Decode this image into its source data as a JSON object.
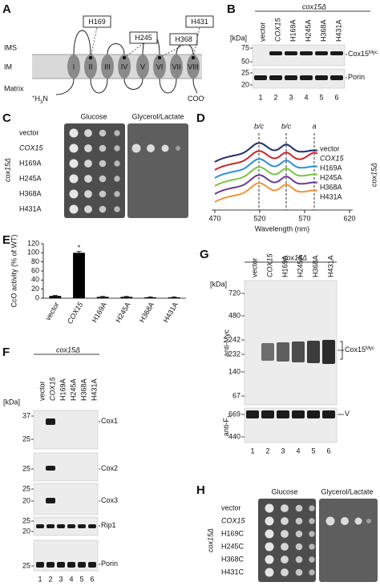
{
  "panel_A": {
    "letter": "A",
    "compartments": [
      "IMS",
      "IM",
      "Matrix"
    ],
    "helices": [
      "I",
      "II",
      "III",
      "IV",
      "V",
      "VI",
      "VII",
      "VIII"
    ],
    "residues": [
      "H169",
      "H245",
      "H368",
      "H431"
    ],
    "n_terminus": [
      "+",
      "H",
      "3",
      "N"
    ],
    "c_terminus": [
      "COO",
      "-"
    ]
  },
  "panel_B": {
    "letter": "B",
    "strain": "cox15Δ",
    "lanes": [
      "vector",
      "COX15",
      "H169A",
      "H245A",
      "H368A",
      "H431A"
    ],
    "unit": "[kDa]",
    "blots": [
      {
        "markers": [
          75,
          50
        ],
        "label": [
          "Cox15",
          "Myc"
        ]
      },
      {
        "markers": [
          25,
          20
        ],
        "label": [
          "Porin"
        ]
      }
    ],
    "lane_numbers": [
      1,
      2,
      3,
      4,
      5,
      6
    ]
  },
  "panel_C": {
    "letter": "C",
    "media": [
      "Glucose",
      "Glycerol/Lactate"
    ],
    "strain": "cox15Δ",
    "strains": [
      "vector",
      "COX15",
      "H169A",
      "H245A",
      "H368A",
      "H431A"
    ]
  },
  "panel_D": {
    "letter": "D",
    "peaks": [
      "b/c",
      "b/c",
      "a"
    ],
    "strains": [
      "vector",
      "COX15",
      "H169A",
      "H245A",
      "H368A",
      "H431A"
    ],
    "colors": [
      "#1f2d6b",
      "#c8262d",
      "#2b8fd6",
      "#7dc242",
      "#6b3b8f",
      "#f39237"
    ],
    "strain": "cox15Δ",
    "xticks": [
      470,
      520,
      570,
      620
    ],
    "xlabel": "Wavelength (nm)"
  },
  "chart_data": {
    "letter": "E",
    "type": "bar",
    "ylabel": "CcO activity (% of WT)",
    "categories": [
      "vector",
      "COX15",
      "H169A",
      "H245A",
      "H368A",
      "H431A"
    ],
    "values": [
      5,
      100,
      3,
      3,
      2,
      2
    ],
    "errors": [
      1,
      3,
      1,
      1,
      1,
      1
    ],
    "color": "#000000",
    "ylim": [
      0,
      120
    ],
    "yticks": [
      0,
      20,
      40,
      60,
      80,
      100,
      120
    ],
    "annotation": "*"
  },
  "panel_F": {
    "letter": "F",
    "strain": "cox15Δ",
    "lanes": [
      "vector",
      "COX15",
      "H169A",
      "H245A",
      "H368A",
      "H431A"
    ],
    "unit": "[kDa]",
    "blots": [
      {
        "markers": [
          37,
          25
        ],
        "label": [
          "Cox1"
        ]
      },
      {
        "markers": [
          25
        ],
        "label": [
          "Cox2"
        ]
      },
      {
        "markers": [
          25,
          20
        ],
        "label": [
          "Cox3"
        ]
      },
      {
        "markers": [
          25,
          20
        ],
        "label": [
          "Rip1"
        ]
      },
      {
        "markers": [
          25
        ],
        "label": [
          "Porin"
        ]
      }
    ],
    "lane_numbers": [
      1,
      2,
      3,
      4,
      5,
      6
    ]
  },
  "panel_G": {
    "letter": "G",
    "strain": "cox15Δ",
    "lanes": [
      "vector",
      "COX15",
      "H169A",
      "H245A",
      "H368A",
      "H431A"
    ],
    "unit": "[kDa]",
    "blots": [
      {
        "antibody": [
          "anti-Myc"
        ],
        "markers": [
          720,
          480,
          242,
          232,
          140,
          67
        ],
        "label": [
          "Cox15",
          "Myc"
        ]
      },
      {
        "antibody": [
          "anti-F",
          "1"
        ],
        "markers": [
          669,
          440
        ],
        "label": [
          "V"
        ]
      }
    ],
    "lane_numbers": [
      1,
      2,
      3,
      4,
      5,
      6
    ]
  },
  "panel_H": {
    "letter": "H",
    "media": [
      "Glucose",
      "Glycerol/Lactate"
    ],
    "strain": "cox15Δ",
    "strains": [
      "vector",
      "COX15",
      "H169C",
      "H245C",
      "H368C",
      "H431C"
    ]
  }
}
